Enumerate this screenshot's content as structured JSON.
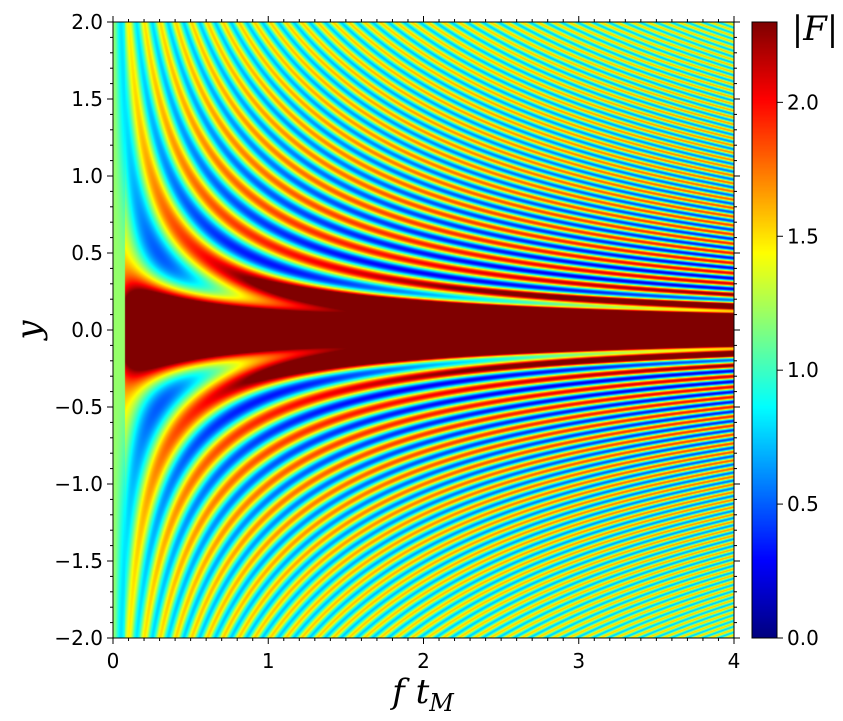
{
  "chart_data": {
    "type": "heatmap",
    "title": "",
    "xlabel": "f t",
    "xlabel_sub": "M",
    "ylabel": "y",
    "xlim": [
      0,
      4
    ],
    "ylim": [
      -2.0,
      2.0
    ],
    "x_ticks": [
      0,
      1,
      2,
      3,
      4
    ],
    "x_tick_labels": [
      "0",
      "1",
      "2",
      "3",
      "4"
    ],
    "y_ticks": [
      2.0,
      1.5,
      1.0,
      0.5,
      0.0,
      -0.5,
      -1.0,
      -1.5,
      -2.0
    ],
    "y_tick_labels": [
      "2.0",
      "1.5",
      "1.0",
      "0.5",
      "0.0",
      "−0.5",
      "−1.0",
      "−1.5",
      "−2.0"
    ],
    "colorbar": {
      "label": "|F|",
      "colormap": "jet",
      "range": [
        0.0,
        2.3
      ],
      "ticks": [
        0.0,
        0.5,
        1.0,
        1.5,
        2.0
      ],
      "tick_labels": [
        "0.0",
        "0.5",
        "1.0",
        "1.5",
        "2.0"
      ]
    },
    "field": "|F| of a magnification-like interference pattern: large values (>2.3, saturated) along y≈0, oscillating fringes between about 0.5 and 2.3 that narrow with increasing f t_M and with |y|"
  }
}
